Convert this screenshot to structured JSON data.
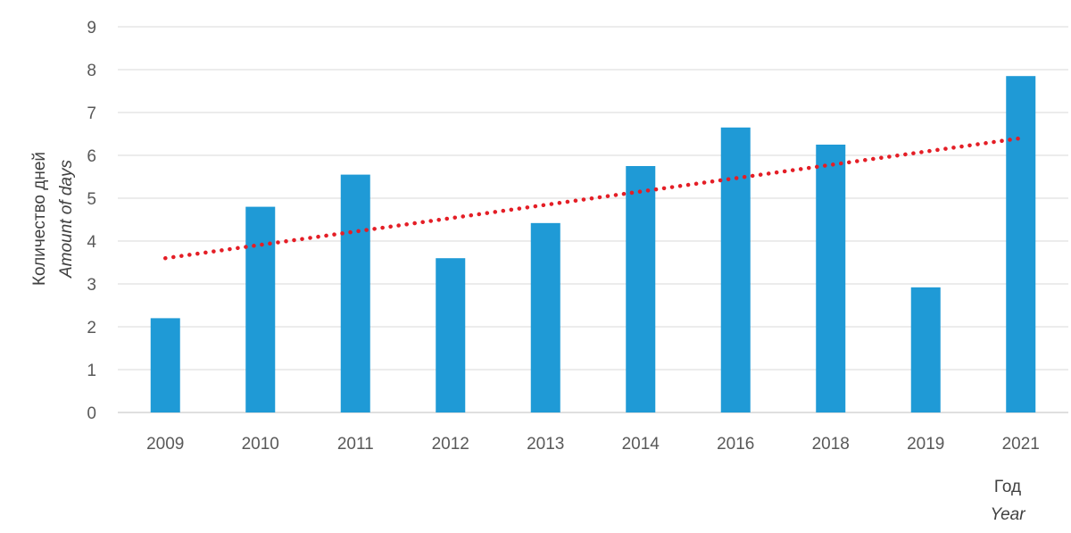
{
  "chart_data": {
    "type": "bar",
    "categories": [
      "2009",
      "2010",
      "2011",
      "2012",
      "2013",
      "2014",
      "2016",
      "2018",
      "2019",
      "2021"
    ],
    "values": [
      2.2,
      4.8,
      5.55,
      3.6,
      4.42,
      5.75,
      6.65,
      6.25,
      2.92,
      7.85
    ],
    "trendline": {
      "type": "linear",
      "style": "dotted",
      "start": 3.6,
      "end": 6.4
    },
    "ylim": [
      0,
      9
    ],
    "yticks": [
      0,
      1,
      2,
      3,
      4,
      5,
      6,
      7,
      8,
      9
    ],
    "ylabel": "Количество дней",
    "ylabel_en": "Amount of days",
    "xlabel": "Год",
    "xlabel_en": "Year",
    "grid": true,
    "colors": {
      "bar": "#1f9ad6",
      "trend": "#e41e26",
      "grid": "#d9d9d9",
      "text": "#595959"
    }
  }
}
